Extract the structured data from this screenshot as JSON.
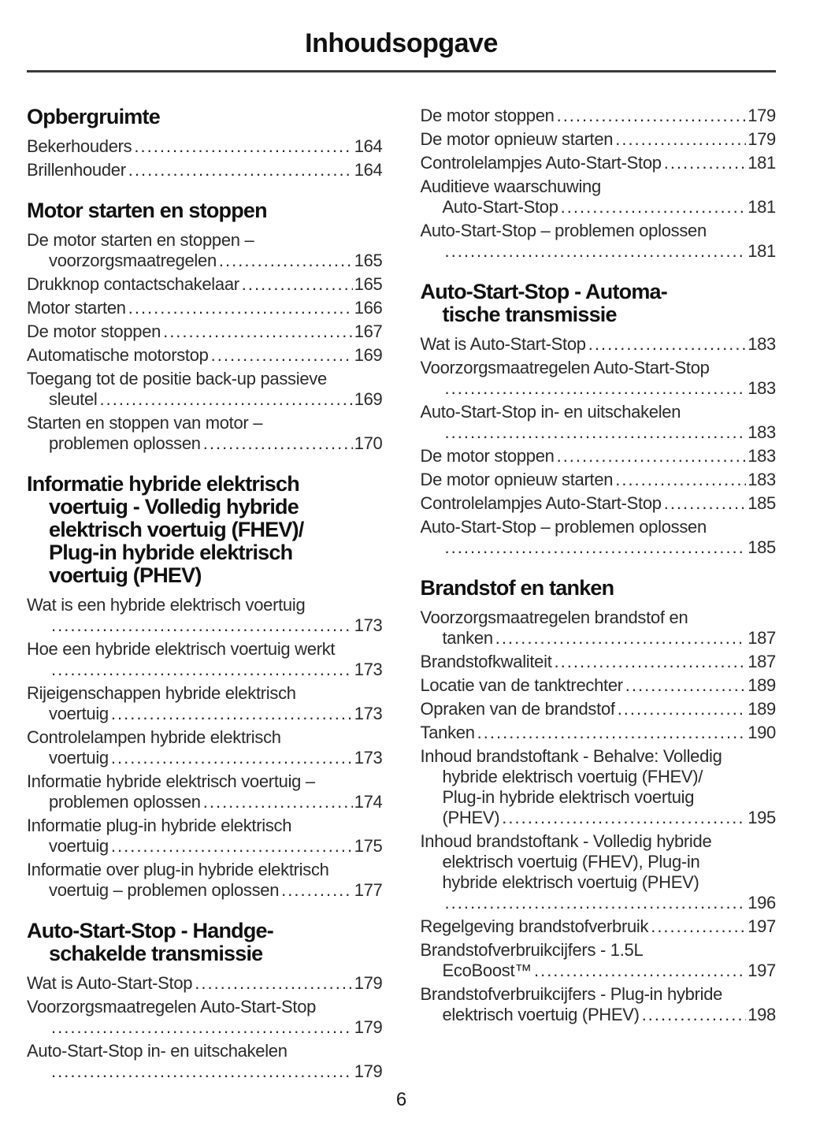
{
  "page": {
    "title": "Inhoudsopgave",
    "page_number": "6"
  },
  "toc": {
    "columns": [
      {
        "blocks": [
          {
            "type": "heading",
            "lines": [
              "Opbergruimte"
            ]
          },
          {
            "type": "entry",
            "lines": [],
            "leader": "Bekerhouders",
            "page": "164"
          },
          {
            "type": "entry",
            "lines": [],
            "leader": "Brillenhouder",
            "page": "164"
          },
          {
            "type": "heading",
            "lines": [
              "Motor starten en stoppen"
            ]
          },
          {
            "type": "entry",
            "lines": [
              "De motor starten en stoppen –"
            ],
            "leader": "voorzorgsmaatregelen",
            "page": "165"
          },
          {
            "type": "entry",
            "lines": [],
            "leader": "Drukknop contactschakelaar",
            "page": "165"
          },
          {
            "type": "entry",
            "lines": [],
            "leader": "Motor starten",
            "page": "166"
          },
          {
            "type": "entry",
            "lines": [],
            "leader": "De motor stoppen",
            "page": "167"
          },
          {
            "type": "entry",
            "lines": [],
            "leader": "Automatische motorstop",
            "page": "169"
          },
          {
            "type": "entry",
            "lines": [
              "Toegang tot de positie back-up passieve"
            ],
            "leader": "sleutel",
            "page": "169"
          },
          {
            "type": "entry",
            "lines": [
              "Starten en stoppen van motor –"
            ],
            "leader": "problemen oplossen",
            "page": "170"
          },
          {
            "type": "heading",
            "lines": [
              "Informatie hybride elektrisch",
              "voertuig - Volledig hybride",
              "elektrisch voertuig (FHEV)/",
              "Plug-in hybride elektrisch",
              "voertuig (PHEV)"
            ]
          },
          {
            "type": "entry",
            "lines": [
              "Wat is een hybride elektrisch voertuig"
            ],
            "leader": "",
            "page": "173"
          },
          {
            "type": "entry",
            "lines": [
              "Hoe een hybride elektrisch voertuig werkt"
            ],
            "leader": "",
            "page": "173"
          },
          {
            "type": "entry",
            "lines": [
              "Rijeigenschappen hybride elektrisch"
            ],
            "leader": "voertuig",
            "page": "173"
          },
          {
            "type": "entry",
            "lines": [
              "Controlelampen hybride elektrisch"
            ],
            "leader": "voertuig",
            "page": "173"
          },
          {
            "type": "entry",
            "lines": [
              "Informatie hybride elektrisch voertuig –"
            ],
            "leader": "problemen oplossen",
            "page": "174"
          },
          {
            "type": "entry",
            "lines": [
              "Informatie plug-in hybride elektrisch"
            ],
            "leader": "voertuig",
            "page": "175"
          },
          {
            "type": "entry",
            "lines": [
              "Informatie over plug-in hybride elektrisch"
            ],
            "leader": "voertuig – problemen oplossen",
            "page": "177"
          },
          {
            "type": "heading",
            "lines": [
              "Auto-Start-Stop - Handge-",
              "schakelde transmissie"
            ]
          },
          {
            "type": "entry",
            "lines": [],
            "leader": "Wat is Auto-Start-Stop",
            "page": "179"
          },
          {
            "type": "entry",
            "lines": [
              "Voorzorgsmaatregelen Auto-Start-Stop"
            ],
            "leader": "",
            "page": "179"
          },
          {
            "type": "entry",
            "lines": [
              "Auto-Start-Stop in- en uitschakelen"
            ],
            "leader": "",
            "page": "179"
          }
        ]
      },
      {
        "blocks": [
          {
            "type": "entry",
            "lines": [],
            "leader": "De motor stoppen",
            "page": "179"
          },
          {
            "type": "entry",
            "lines": [],
            "leader": "De motor opnieuw starten",
            "page": "179"
          },
          {
            "type": "entry",
            "lines": [],
            "leader": "Controlelampjes Auto-Start-Stop",
            "page": "181"
          },
          {
            "type": "entry",
            "lines": [
              "Auditieve waarschuwing"
            ],
            "leader": "Auto-Start-Stop",
            "page": "181"
          },
          {
            "type": "entry",
            "lines": [
              "Auto-Start-Stop – problemen oplossen"
            ],
            "leader": "",
            "page": "181"
          },
          {
            "type": "heading",
            "lines": [
              "Auto-Start-Stop - Automa-",
              "tische transmissie"
            ]
          },
          {
            "type": "entry",
            "lines": [],
            "leader": "Wat is Auto-Start-Stop",
            "page": "183"
          },
          {
            "type": "entry",
            "lines": [
              "Voorzorgsmaatregelen Auto-Start-Stop"
            ],
            "leader": "",
            "page": "183"
          },
          {
            "type": "entry",
            "lines": [
              "Auto-Start-Stop in- en uitschakelen"
            ],
            "leader": "",
            "page": "183"
          },
          {
            "type": "entry",
            "lines": [],
            "leader": "De motor stoppen",
            "page": "183"
          },
          {
            "type": "entry",
            "lines": [],
            "leader": "De motor opnieuw starten",
            "page": "183"
          },
          {
            "type": "entry",
            "lines": [],
            "leader": "Controlelampjes Auto-Start-Stop",
            "page": "185"
          },
          {
            "type": "entry",
            "lines": [
              "Auto-Start-Stop – problemen oplossen"
            ],
            "leader": "",
            "page": "185"
          },
          {
            "type": "heading",
            "lines": [
              "Brandstof en tanken"
            ]
          },
          {
            "type": "entry",
            "lines": [
              "Voorzorgsmaatregelen brandstof en"
            ],
            "leader": "tanken",
            "page": "187"
          },
          {
            "type": "entry",
            "lines": [],
            "leader": "Brandstofkwaliteit",
            "page": "187"
          },
          {
            "type": "entry",
            "lines": [],
            "leader": "Locatie van de tanktrechter",
            "page": "189"
          },
          {
            "type": "entry",
            "lines": [],
            "leader": "Opraken van de brandstof",
            "page": "189"
          },
          {
            "type": "entry",
            "lines": [],
            "leader": "Tanken",
            "page": "190"
          },
          {
            "type": "entry",
            "lines": [
              "Inhoud brandstoftank - Behalve: Volledig",
              "hybride elektrisch voertuig (FHEV)/",
              "Plug-in hybride elektrisch voertuig"
            ],
            "leader": "(PHEV)",
            "page": "195"
          },
          {
            "type": "entry",
            "lines": [
              "Inhoud brandstoftank - Volledig hybride",
              "elektrisch voertuig (FHEV), Plug-in",
              "hybride elektrisch voertuig (PHEV)"
            ],
            "leader": "",
            "page": "196"
          },
          {
            "type": "entry",
            "lines": [],
            "leader": "Regelgeving brandstofverbruik",
            "page": "197"
          },
          {
            "type": "entry",
            "lines": [
              "Brandstofverbruikcijfers - 1.5L"
            ],
            "leader": "EcoBoost™",
            "page": "197"
          },
          {
            "type": "entry",
            "lines": [
              "Brandstofverbruikcijfers - Plug-in hybride"
            ],
            "leader": "elektrisch voertuig (PHEV)",
            "page": "198"
          }
        ]
      }
    ]
  }
}
